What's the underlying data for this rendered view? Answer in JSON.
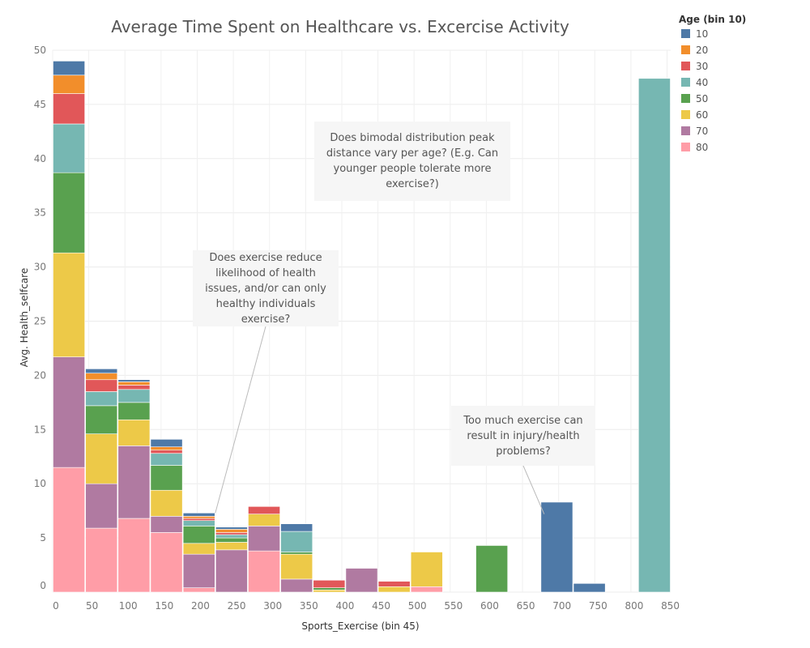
{
  "chart_data": {
    "type": "bar",
    "stacked": true,
    "title": "Average Time Spent on Healthcare vs. Excercise Activity",
    "xlabel": "Sports_Exercise (bin 45)",
    "ylabel": "Avg. Health_selfcare",
    "ylim": [
      0,
      50
    ],
    "yticks": [
      0,
      5,
      10,
      15,
      20,
      25,
      30,
      35,
      40,
      45,
      50
    ],
    "xlim": [
      0,
      855
    ],
    "xticks": [
      0,
      50,
      100,
      150,
      200,
      250,
      300,
      350,
      400,
      450,
      500,
      550,
      600,
      650,
      700,
      750,
      800,
      850
    ],
    "bin_width": 45,
    "grid": true,
    "legend_position": "top-right",
    "legend_title": "Age (bin 10)",
    "bins": [
      0,
      45,
      90,
      135,
      180,
      225,
      270,
      315,
      360,
      405,
      450,
      495,
      540,
      585,
      630,
      675,
      720,
      765,
      810
    ],
    "series": [
      {
        "name": "80",
        "color": "#FF9DA7",
        "values": [
          11.5,
          5.9,
          6.8,
          5.5,
          0.4,
          0,
          3.8,
          0,
          0,
          0,
          0,
          0.5,
          0,
          0,
          0,
          0,
          0,
          0,
          0
        ]
      },
      {
        "name": "70",
        "color": "#B07AA1",
        "values": [
          10.2,
          4.1,
          6.7,
          1.5,
          3.1,
          3.9,
          2.3,
          1.2,
          0,
          2.2,
          0,
          0,
          0,
          0,
          0,
          0,
          0,
          0,
          0
        ]
      },
      {
        "name": "60",
        "color": "#EDC948",
        "values": [
          9.6,
          4.6,
          2.4,
          2.4,
          1.0,
          0.7,
          1.1,
          2.3,
          0.2,
          0,
          0.5,
          3.2,
          0,
          0,
          0,
          0,
          0,
          0,
          0
        ]
      },
      {
        "name": "50",
        "color": "#59A14F",
        "values": [
          7.4,
          2.6,
          1.6,
          2.3,
          1.6,
          0.4,
          0,
          0.2,
          0.2,
          0,
          0,
          0,
          0,
          4.3,
          0,
          0,
          0,
          0,
          0
        ]
      },
      {
        "name": "40",
        "color": "#76B7B2",
        "values": [
          4.5,
          1.3,
          1.2,
          1.1,
          0.5,
          0.3,
          0,
          1.9,
          0,
          0,
          0,
          0,
          0,
          0,
          0,
          0,
          0,
          0,
          47.4
        ]
      },
      {
        "name": "30",
        "color": "#E15759",
        "values": [
          2.8,
          1.1,
          0.4,
          0.3,
          0.2,
          0.2,
          0.7,
          0,
          0.7,
          0,
          0.5,
          0,
          0,
          0,
          0,
          0,
          0,
          0,
          0
        ]
      },
      {
        "name": "20",
        "color": "#F28E2B",
        "values": [
          1.7,
          0.6,
          0.3,
          0.3,
          0.2,
          0.3,
          0,
          0,
          0,
          0,
          0,
          0,
          0,
          0,
          0,
          0,
          0,
          0,
          0
        ]
      },
      {
        "name": "10",
        "color": "#4E79A7",
        "values": [
          1.3,
          0.4,
          0.2,
          0.7,
          0.3,
          0.2,
          0,
          0.7,
          0,
          0,
          0,
          0,
          0,
          0,
          0,
          8.3,
          0.8,
          0,
          0
        ]
      }
    ],
    "annotations": [
      {
        "text": "Does bimodal distribution peak distance vary per age? (E.g. Can younger people tolerate more exercise?)"
      },
      {
        "text": "Does exercise reduce likelihood of health issues, and/or can only healthy individuals exercise?",
        "pointer": {
          "x": 225,
          "y": 7.3
        }
      },
      {
        "text": "Too much exercise can result in injury/health problems?",
        "pointer": {
          "x": 680,
          "y": 7.2
        }
      }
    ]
  },
  "legend": {
    "title": "Age (bin 10)",
    "items": [
      {
        "label": "10",
        "color": "#4E79A7"
      },
      {
        "label": "20",
        "color": "#F28E2B"
      },
      {
        "label": "30",
        "color": "#E15759"
      },
      {
        "label": "40",
        "color": "#76B7B2"
      },
      {
        "label": "50",
        "color": "#59A14F"
      },
      {
        "label": "60",
        "color": "#EDC948"
      },
      {
        "label": "70",
        "color": "#B07AA1"
      },
      {
        "label": "80",
        "color": "#FF9DA7"
      }
    ]
  }
}
